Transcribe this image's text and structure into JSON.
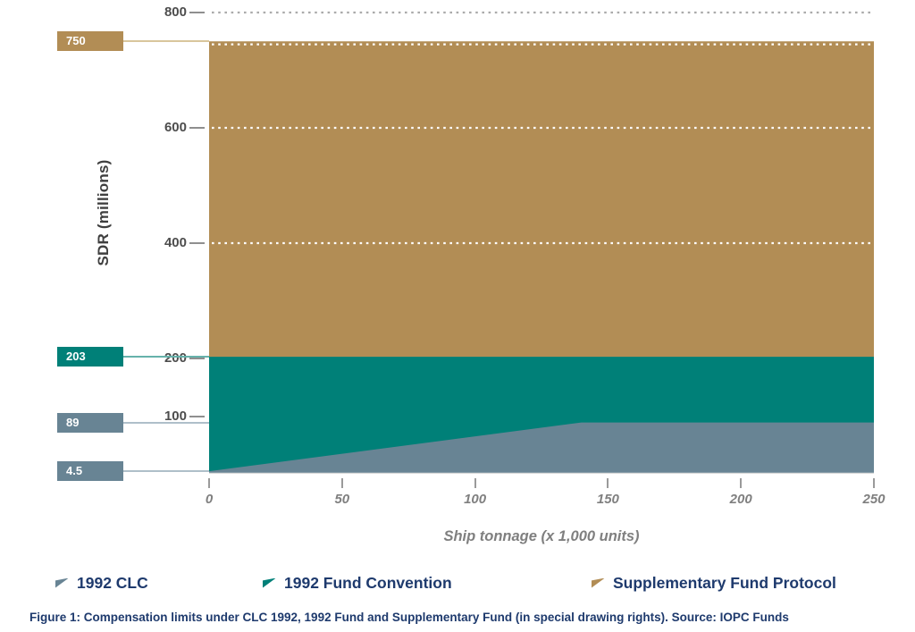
{
  "figure": {
    "caption": "Figure 1: Compensation limits under CLC 1992, 1992 Fund and Supplementary Fund (in special drawing rights). Source: IOPC Funds"
  },
  "chart_data": {
    "type": "area",
    "title": "",
    "xlabel": "Ship tonnage (x 1,000 units)",
    "ylabel": "SDR (millions)",
    "xlim": [
      0,
      250
    ],
    "ylim": [
      0,
      800
    ],
    "x_ticks": [
      0,
      50,
      100,
      150,
      200,
      250
    ],
    "y_ticks": [
      800,
      600,
      400,
      200,
      100
    ],
    "inner_dotted_gridlines": [
      750,
      600,
      400
    ],
    "outer_dotted_gridlines": [
      800
    ],
    "grid_dot_color_inner": "#ffffff",
    "grid_dot_color_outer": "#ababab",
    "series": [
      {
        "name": "1992 CLC",
        "color": "#688494",
        "points": [
          [
            0,
            4.5
          ],
          [
            140,
            89
          ],
          [
            250,
            89
          ]
        ]
      },
      {
        "name": "1992 Fund Convention",
        "color": "#008078",
        "points": [
          [
            0,
            203
          ],
          [
            250,
            203
          ]
        ]
      },
      {
        "name": "Supplementary Fund Protocol",
        "color": "#B28D55",
        "points": [
          [
            0,
            750
          ],
          [
            250,
            750
          ]
        ]
      }
    ],
    "annotations": [
      {
        "label": "750",
        "value": 750,
        "color": "#B28D55",
        "line_color": "#D9C69C"
      },
      {
        "label": "203",
        "value": 203,
        "color": "#008078",
        "line_color": "#66B2AB"
      },
      {
        "label": "89",
        "value": 89,
        "color": "#688494",
        "line_color": "#AFBFC9"
      },
      {
        "label": "4.5",
        "value": 4.5,
        "color": "#688494",
        "line_color": "#AFBFC9"
      }
    ]
  },
  "legend": {
    "items": [
      {
        "label": "1992 CLC",
        "color": "#688494"
      },
      {
        "label": "1992 Fund Convention",
        "color": "#008078"
      },
      {
        "label": "Supplementary Fund Protocol",
        "color": "#B28D55"
      }
    ]
  }
}
